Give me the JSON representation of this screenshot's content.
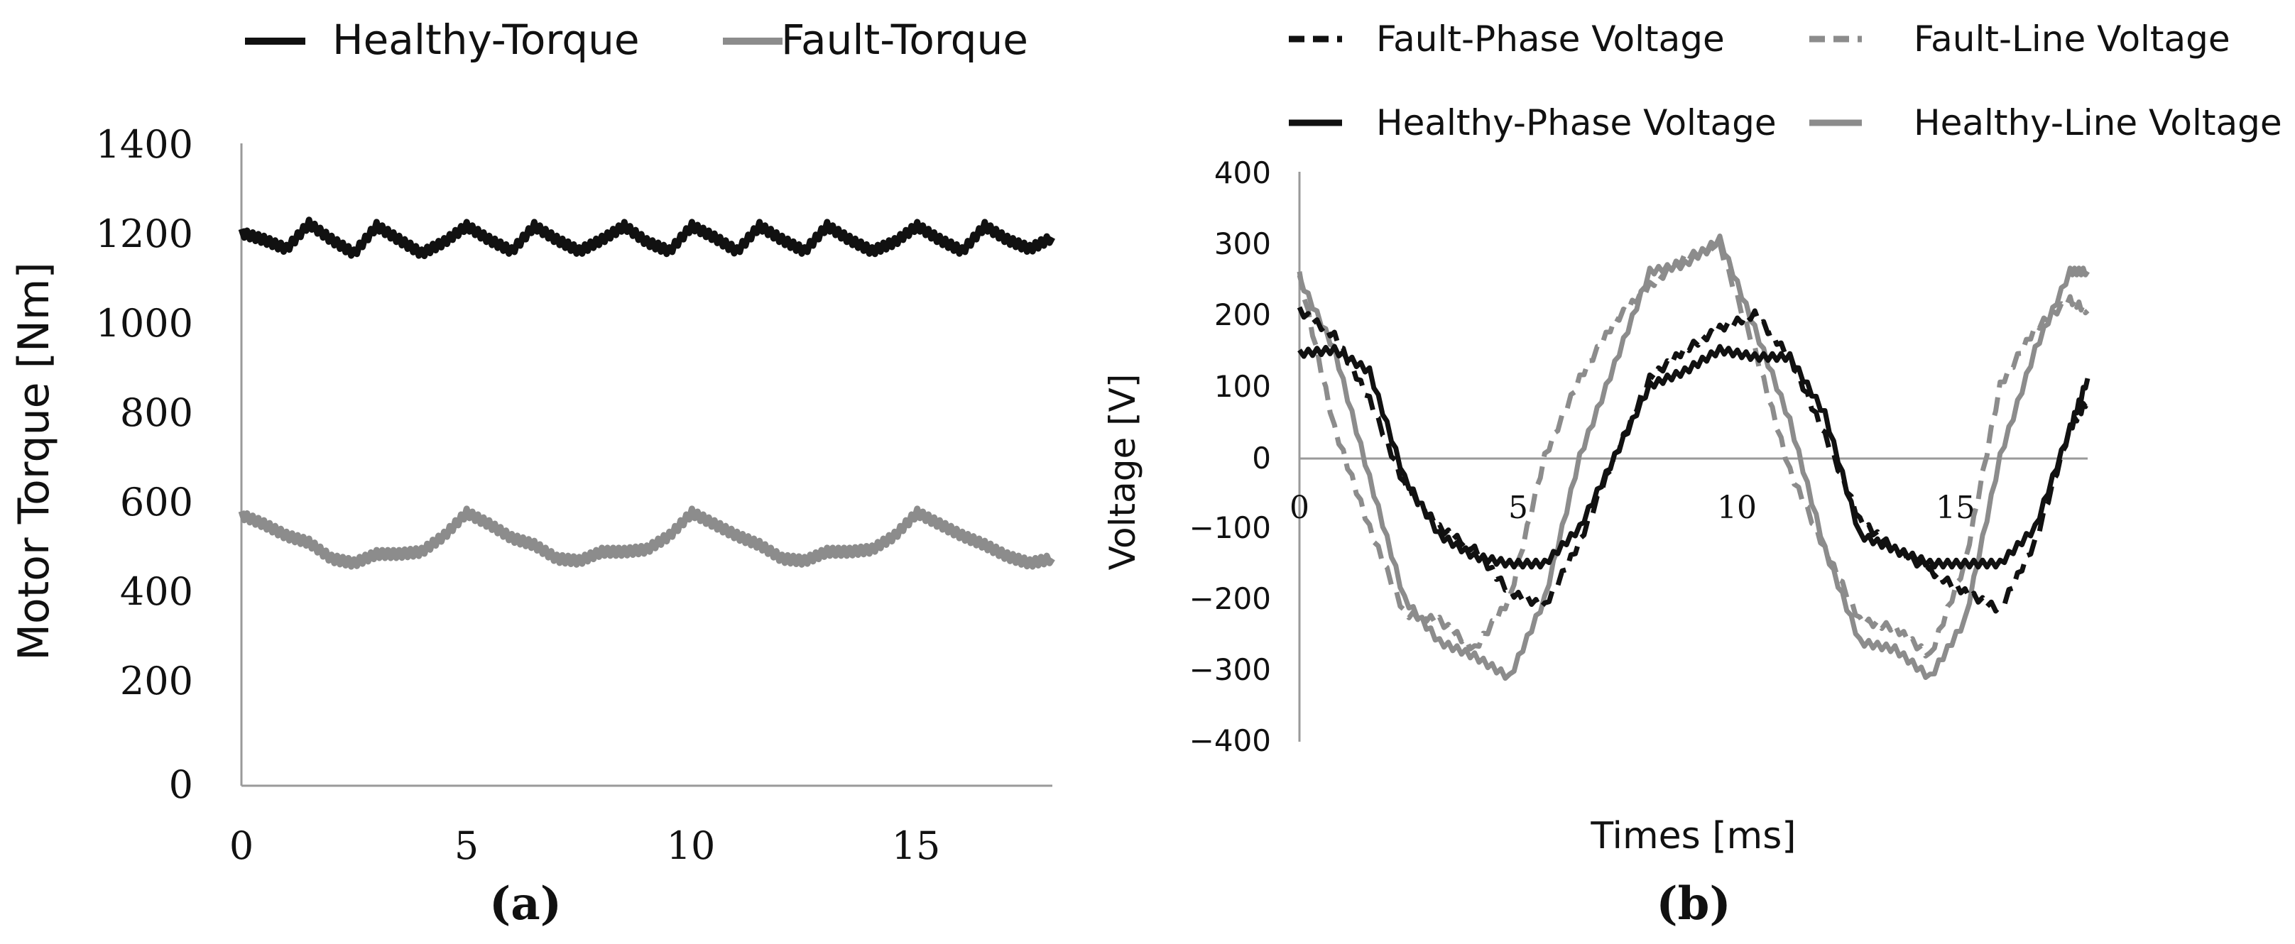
{
  "figure": {
    "panel_a_label": "(a)",
    "panel_b_label": "(b)"
  },
  "chart_data": [
    {
      "type": "line",
      "panel": "(a)",
      "title": "",
      "xlabel": "",
      "ylabel": "Motor Torque [Nm]",
      "xlim": [
        0,
        18
      ],
      "ylim": [
        0,
        1400
      ],
      "xticks": [
        0,
        5,
        10,
        15
      ],
      "yticks": [
        0,
        200,
        400,
        600,
        800,
        1000,
        1200,
        1400
      ],
      "grid": false,
      "legend_position": "top",
      "series": [
        {
          "name": "Healthy-Torque",
          "color": "#111111",
          "dash": "solid",
          "x": [
            0,
            0.5,
            1.0,
            1.5,
            2.0,
            2.5,
            3.0,
            3.5,
            4.0,
            4.5,
            5.0,
            5.5,
            6.0,
            6.5,
            7.0,
            7.5,
            8.0,
            8.5,
            9.0,
            9.5,
            10.0,
            10.5,
            11.0,
            11.5,
            12.0,
            12.5,
            13.0,
            13.5,
            14.0,
            14.5,
            15.0,
            15.5,
            16.0,
            16.5,
            17.0,
            17.5,
            18.0
          ],
          "y": [
            1205,
            1190,
            1170,
            1225,
            1190,
            1160,
            1220,
            1190,
            1160,
            1185,
            1220,
            1190,
            1165,
            1220,
            1190,
            1165,
            1190,
            1220,
            1185,
            1165,
            1220,
            1195,
            1165,
            1220,
            1190,
            1165,
            1220,
            1190,
            1165,
            1185,
            1220,
            1190,
            1165,
            1220,
            1190,
            1170,
            1195
          ]
        },
        {
          "name": "Fault-Torque",
          "color": "#8c8c8c",
          "dash": "solid",
          "x": [
            0,
            0.5,
            1.0,
            1.5,
            2.0,
            2.5,
            3.0,
            3.5,
            4.0,
            4.5,
            5.0,
            5.5,
            6.0,
            6.5,
            7.0,
            7.5,
            8.0,
            8.5,
            9.0,
            9.5,
            10.0,
            10.5,
            11.0,
            11.5,
            12.0,
            12.5,
            13.0,
            13.5,
            14.0,
            14.5,
            15.0,
            15.5,
            16.0,
            16.5,
            17.0,
            17.5,
            18.0
          ],
          "y": [
            590,
            570,
            545,
            530,
            495,
            485,
            505,
            505,
            510,
            545,
            595,
            570,
            540,
            525,
            495,
            490,
            510,
            510,
            515,
            545,
            595,
            570,
            545,
            525,
            495,
            490,
            510,
            510,
            515,
            545,
            595,
            570,
            545,
            525,
            500,
            485,
            495
          ]
        }
      ]
    },
    {
      "type": "line",
      "panel": "(b)",
      "title": "",
      "xlabel": "Times [ms]",
      "ylabel": "Voltage [V]",
      "xlim": [
        0,
        18
      ],
      "ylim": [
        -400,
        400
      ],
      "xticks": [
        0,
        5,
        10,
        15
      ],
      "yticks": [
        400,
        300,
        200,
        100,
        0,
        -100,
        -200,
        -300,
        -400
      ],
      "xtick_labels": [
        "0",
        "5",
        "10",
        "15"
      ],
      "ytick_labels": [
        "400",
        "300",
        "200",
        "100",
        "0",
        "−100",
        "−200",
        "−300",
        "−400"
      ],
      "grid": false,
      "legend_position": "top",
      "series": [
        {
          "name": "Fault-Phase Voltage",
          "color": "#111111",
          "dash": "dashed",
          "x": [
            0,
            0.8,
            1.6,
            2.4,
            3.2,
            4.0,
            4.8,
            5.6,
            6.4,
            7.2,
            8.0,
            8.8,
            9.6,
            10.4,
            11.2,
            12.0,
            12.8,
            13.6,
            14.4,
            15.2,
            16.0,
            16.8,
            17.6,
            18.0
          ],
          "y": [
            205,
            170,
            80,
            -40,
            -100,
            -130,
            -190,
            -210,
            -120,
            0,
            110,
            150,
            180,
            200,
            140,
            30,
            -90,
            -130,
            -160,
            -190,
            -215,
            -120,
            40,
            80
          ]
        },
        {
          "name": "Fault-Line Voltage",
          "color": "#8c8c8c",
          "dash": "dashed",
          "x": [
            0,
            0.8,
            1.6,
            2.4,
            3.2,
            4.0,
            4.8,
            5.6,
            6.4,
            7.2,
            8.0,
            8.8,
            9.6,
            10.4,
            11.2,
            12.0,
            12.8,
            13.6,
            14.4,
            15.2,
            16.0,
            16.8,
            17.6,
            18.0
          ],
          "y": [
            255,
            40,
            -100,
            -220,
            -230,
            -270,
            -200,
            0,
            110,
            190,
            240,
            280,
            295,
            150,
            -20,
            -130,
            -230,
            -240,
            -280,
            -150,
            100,
            180,
            220,
            205
          ]
        },
        {
          "name": "Healthy-Phase Voltage",
          "color": "#111111",
          "dash": "solid",
          "x": [
            0,
            0.8,
            1.6,
            2.4,
            3.2,
            4.0,
            4.8,
            5.6,
            6.4,
            7.2,
            8.0,
            8.8,
            9.6,
            10.4,
            11.2,
            12.0,
            12.8,
            13.6,
            14.4,
            15.2,
            16.0,
            16.8,
            17.6,
            18.0
          ],
          "y": [
            145,
            150,
            120,
            -30,
            -110,
            -140,
            -150,
            -150,
            -100,
            0,
            100,
            120,
            150,
            140,
            140,
            60,
            -110,
            -130,
            -150,
            -150,
            -150,
            -100,
            40,
            110
          ]
        },
        {
          "name": "Healthy-Line Voltage",
          "color": "#8c8c8c",
          "dash": "solid",
          "x": [
            0,
            0.8,
            1.6,
            2.4,
            3.2,
            4.0,
            4.8,
            5.6,
            6.4,
            7.2,
            8.0,
            8.8,
            9.6,
            10.4,
            11.2,
            12.0,
            12.8,
            13.6,
            14.4,
            15.2,
            16.0,
            16.8,
            17.6,
            18.0
          ],
          "y": [
            250,
            150,
            -30,
            -200,
            -260,
            -280,
            -310,
            -200,
            0,
            130,
            260,
            270,
            305,
            180,
            50,
            -130,
            -260,
            -270,
            -310,
            -230,
            0,
            150,
            260,
            260
          ]
        }
      ]
    }
  ]
}
